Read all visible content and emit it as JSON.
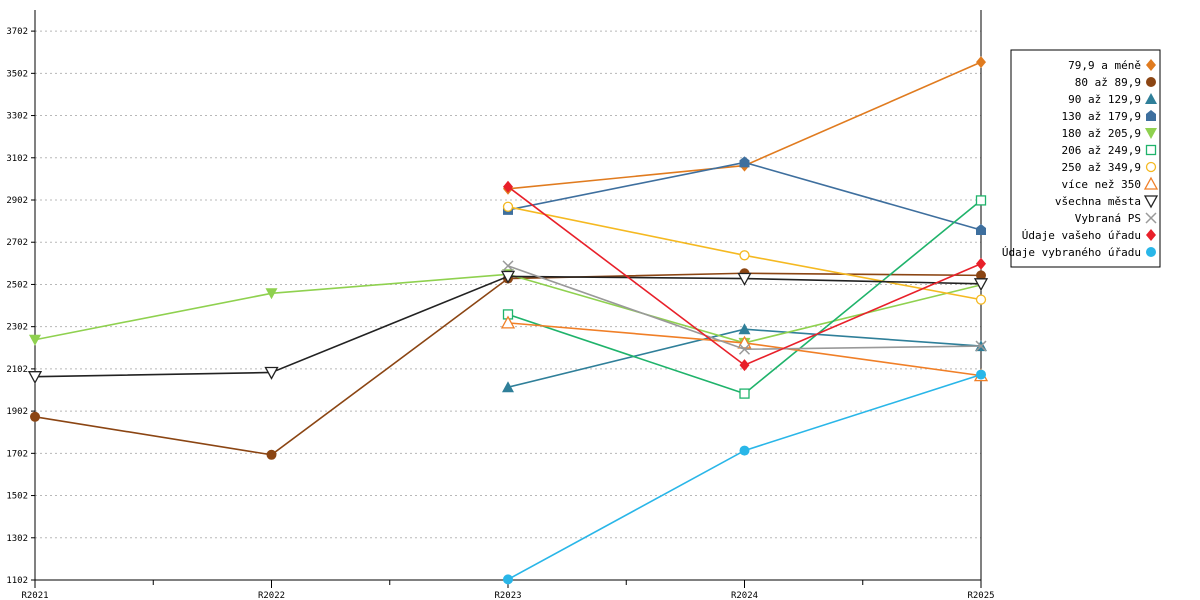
{
  "chart_data": {
    "type": "line",
    "categories": [
      "R2021",
      "R2022",
      "R2023",
      "R2024",
      "R2025"
    ],
    "ylim": [
      1102,
      3802
    ],
    "yticks": [
      1102,
      1302,
      1502,
      1702,
      1902,
      2102,
      2302,
      2502,
      2702,
      2902,
      3102,
      3302,
      3502,
      3702
    ],
    "grid": true,
    "legend_position": "right",
    "series": [
      {
        "name": "79,9 a méně",
        "color": "#e07b1f",
        "marker": "diamond",
        "values": [
          null,
          null,
          2955,
          3065,
          3555
        ]
      },
      {
        "name": "80 až 89,9",
        "color": "#8b4513",
        "marker": "circle",
        "values": [
          1875,
          1695,
          2530,
          2555,
          2545
        ]
      },
      {
        "name": "90 až 129,9",
        "color": "#2f7f99",
        "marker": "triangle-up",
        "values": [
          null,
          null,
          2015,
          2290,
          2210
        ]
      },
      {
        "name": "130 až 179,9",
        "color": "#3e6f9e",
        "marker": "house",
        "values": [
          null,
          null,
          2855,
          3080,
          2760
        ]
      },
      {
        "name": "180 až 205,9",
        "color": "#8fd14f",
        "marker": "triangle-down",
        "values": [
          2240,
          2460,
          2550,
          2225,
          2500
        ]
      },
      {
        "name": "206 až 249,9",
        "color": "#1fb36b",
        "marker": "square-open",
        "values": [
          null,
          null,
          2360,
          1985,
          2900
        ]
      },
      {
        "name": "250 až 349,9",
        "color": "#f5b921",
        "marker": "circle-open",
        "values": [
          null,
          null,
          2870,
          2640,
          2430
        ]
      },
      {
        "name": "více než 350",
        "color": "#f07f27",
        "marker": "triangle-up-open",
        "values": [
          null,
          null,
          2320,
          2225,
          2070
        ]
      },
      {
        "name": "všechna města",
        "color": "#222222",
        "marker": "triangle-down-open",
        "values": [
          2065,
          2085,
          2540,
          2530,
          2505
        ]
      },
      {
        "name": "Vybraná PS",
        "color": "#999999",
        "marker": "x",
        "values": [
          null,
          null,
          2590,
          2195,
          2210
        ]
      },
      {
        "name": "Údaje vašeho úřadu",
        "color": "#e8202a",
        "marker": "diamond",
        "values": [
          null,
          null,
          2965,
          2120,
          2600
        ]
      },
      {
        "name": "Údaje vybraného úřadu",
        "color": "#29b6e8",
        "marker": "circle",
        "values": [
          null,
          null,
          1105,
          1715,
          2075
        ]
      }
    ]
  }
}
